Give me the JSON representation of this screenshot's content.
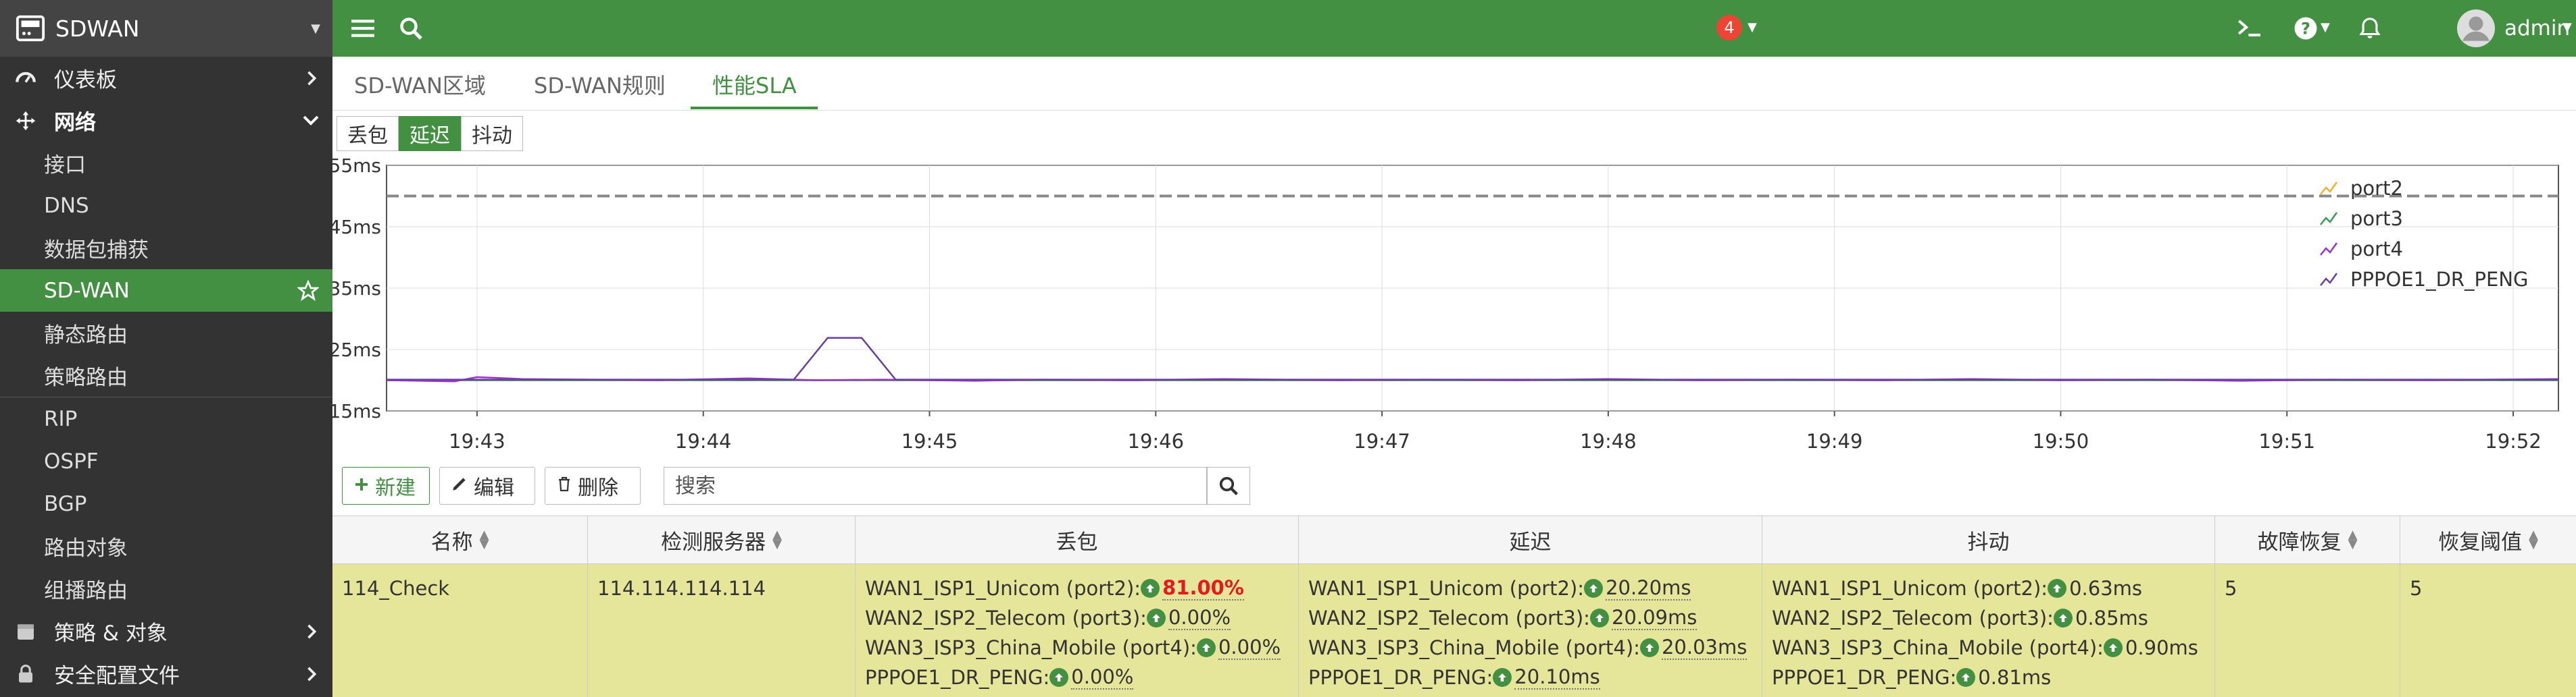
{
  "sidebar": {
    "brand": "SDWAN",
    "items": [
      {
        "label": "仪表板"
      },
      {
        "label": "网络"
      },
      {
        "label": "接口"
      },
      {
        "label": "DNS"
      },
      {
        "label": "数据包捕获"
      },
      {
        "label": "SD-WAN"
      },
      {
        "label": "静态路由"
      },
      {
        "label": "策略路由"
      },
      {
        "label": "RIP"
      },
      {
        "label": "OSPF"
      },
      {
        "label": "BGP"
      },
      {
        "label": "路由对象"
      },
      {
        "label": "组播路由"
      },
      {
        "label": "策略 & 对象"
      },
      {
        "label": "安全配置文件"
      }
    ]
  },
  "topbar": {
    "notification_count": "4",
    "user": "admin"
  },
  "tabs": [
    {
      "label": "SD-WAN区域"
    },
    {
      "label": "SD-WAN规则"
    },
    {
      "label": "性能SLA"
    }
  ],
  "metric_toggle": [
    {
      "label": "丢包"
    },
    {
      "label": "延迟"
    },
    {
      "label": "抖动"
    }
  ],
  "toolbar": {
    "new_label": "新建",
    "edit_label": "编辑",
    "delete_label": "删除",
    "search_placeholder": "搜索"
  },
  "table": {
    "columns": [
      "名称",
      "检测服务器",
      "丢包",
      "延迟",
      "抖动",
      "故障恢复",
      "恢复阈值"
    ],
    "row": {
      "name": "114_Check",
      "server": "114.114.114.114",
      "failover": "5",
      "recovery": "5",
      "loss": [
        {
          "label": "WAN1_ISP1_Unicom (port2):",
          "value": "81.00%"
        },
        {
          "label": "WAN2_ISP2_Telecom (port3):",
          "value": "0.00%"
        },
        {
          "label": "WAN3_ISP3_China_Mobile (port4):",
          "value": "0.00%"
        },
        {
          "label": "PPPOE1_DR_PENG:",
          "value": "0.00%"
        }
      ],
      "latency": [
        {
          "label": "WAN1_ISP1_Unicom (port2):",
          "value": "20.20ms"
        },
        {
          "label": "WAN2_ISP2_Telecom (port3):",
          "value": "20.09ms"
        },
        {
          "label": "WAN3_ISP3_China_Mobile (port4):",
          "value": "20.03ms"
        },
        {
          "label": "PPPOE1_DR_PENG:",
          "value": "20.10ms"
        }
      ],
      "jitter": [
        {
          "label": "WAN1_ISP1_Unicom (port2):",
          "value": "0.63ms"
        },
        {
          "label": "WAN2_ISP2_Telecom (port3):",
          "value": "0.85ms"
        },
        {
          "label": "WAN3_ISP3_China_Mobile (port4):",
          "value": "0.90ms"
        },
        {
          "label": "PPPOE1_DR_PENG:",
          "value": "0.81ms"
        }
      ]
    }
  },
  "colors": {
    "primary_green": "#439043",
    "highlight_row": "#e6e69a",
    "bad_value": "#e41a1c"
  },
  "chart_data": {
    "type": "line",
    "title": "",
    "ylabel": "",
    "xlabel": "",
    "yticks": [
      "15ms",
      "25ms",
      "35ms",
      "45ms",
      "55ms"
    ],
    "ylim": [
      15,
      55
    ],
    "xticks": [
      "19:43",
      "19:44",
      "19:45",
      "19:46",
      "19:47",
      "19:48",
      "19:49",
      "19:50",
      "19:51",
      "19:52"
    ],
    "xlim_minutes": [
      42.6,
      52.2
    ],
    "threshold_ms": 50,
    "legend_position": "top-right",
    "series": [
      {
        "name": "port2",
        "color": "#f0b030",
        "points": [
          [
            42.6,
            20
          ],
          [
            52.2,
            20
          ]
        ]
      },
      {
        "name": "port3",
        "color": "#3a9a5a",
        "points": [
          [
            42.6,
            20
          ],
          [
            52.2,
            20
          ]
        ]
      },
      {
        "name": "port4",
        "color": "#9933cc",
        "points": [
          [
            42.6,
            20.0
          ],
          [
            42.9,
            19.8
          ],
          [
            43.0,
            20.5
          ],
          [
            43.2,
            20.2
          ],
          [
            43.5,
            20.1
          ],
          [
            43.8,
            20.0
          ],
          [
            44.2,
            20.3
          ],
          [
            44.5,
            20.0
          ],
          [
            44.8,
            20.1
          ],
          [
            45.2,
            19.9
          ],
          [
            45.5,
            20.1
          ],
          [
            45.9,
            20.0
          ],
          [
            46.3,
            20.2
          ],
          [
            46.8,
            20.0
          ],
          [
            47.2,
            20.1
          ],
          [
            47.6,
            20.0
          ],
          [
            48.0,
            20.2
          ],
          [
            48.4,
            20.0
          ],
          [
            48.8,
            20.1
          ],
          [
            49.2,
            20.0
          ],
          [
            49.6,
            20.2
          ],
          [
            50.0,
            20.0
          ],
          [
            50.4,
            20.1
          ],
          [
            50.8,
            19.9
          ],
          [
            51.2,
            20.1
          ],
          [
            51.6,
            20.0
          ],
          [
            52.2,
            20.2
          ]
        ]
      },
      {
        "name": "PPPOE1_DR_PENG",
        "color": "#6b3fa0",
        "points": [
          [
            42.6,
            20.1
          ],
          [
            44.4,
            20.1
          ],
          [
            44.55,
            26.9
          ],
          [
            44.7,
            26.9
          ],
          [
            44.85,
            20.1
          ],
          [
            52.2,
            20.1
          ]
        ]
      }
    ]
  }
}
